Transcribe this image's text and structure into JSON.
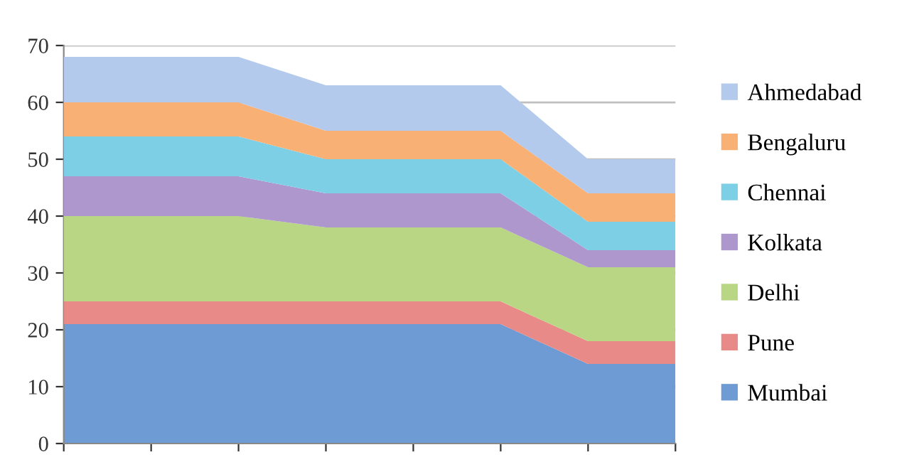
{
  "chart_data": {
    "type": "area",
    "stacked": true,
    "categories": [
      null,
      null,
      null,
      null,
      null,
      null,
      null,
      null
    ],
    "series": [
      {
        "name": "Mumbai",
        "color": "#6f9bd4",
        "values": [
          21,
          21,
          21,
          21,
          21,
          21,
          14,
          14
        ]
      },
      {
        "name": "Pune",
        "color": "#e88a87",
        "values": [
          4,
          4,
          4,
          4,
          4,
          4,
          4,
          4
        ]
      },
      {
        "name": "Delhi",
        "color": "#b9d685",
        "values": [
          15,
          15,
          15,
          13,
          13,
          13,
          13,
          13
        ]
      },
      {
        "name": "Kolkata",
        "color": "#ad97cc",
        "values": [
          7,
          7,
          7,
          6,
          6,
          6,
          3,
          3
        ]
      },
      {
        "name": "Chennai",
        "color": "#7dcfe6",
        "values": [
          7,
          7,
          7,
          6,
          6,
          6,
          5,
          5
        ]
      },
      {
        "name": "Bengaluru",
        "color": "#f9b075",
        "values": [
          6,
          6,
          6,
          5,
          5,
          5,
          5,
          5
        ]
      },
      {
        "name": "Ahmedabad",
        "color": "#b3caec",
        "values": [
          8,
          8,
          8,
          8,
          8,
          8,
          6,
          6
        ]
      }
    ],
    "ylim": [
      0,
      70
    ],
    "yticks": [
      0,
      10,
      20,
      30,
      40,
      50,
      60,
      70
    ],
    "grid": "y",
    "legend": "right"
  }
}
